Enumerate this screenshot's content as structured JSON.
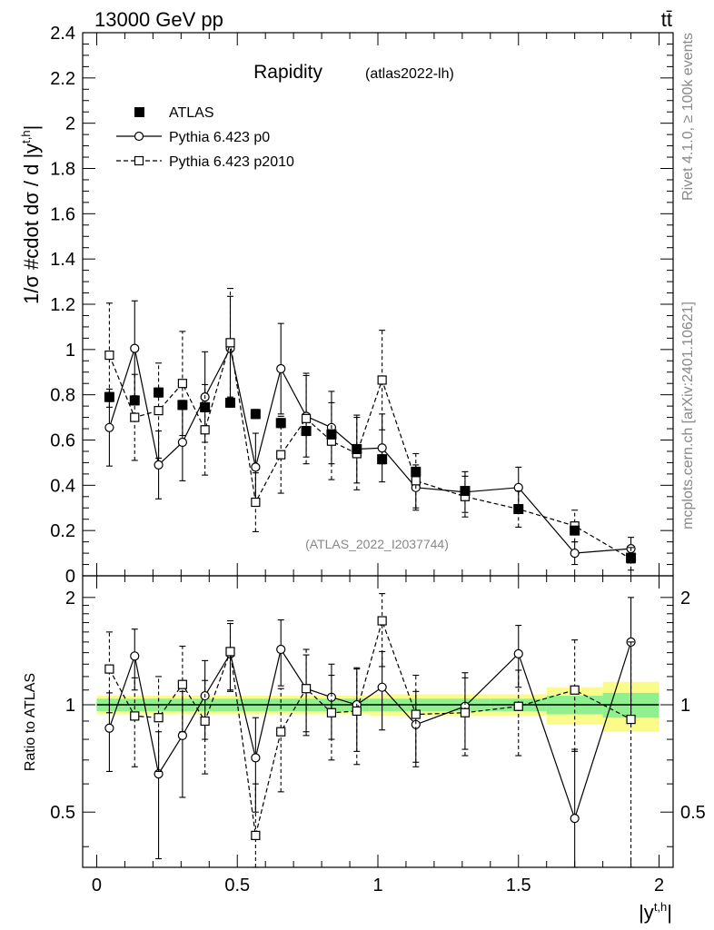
{
  "header": {
    "left_label": "13000 GeV pp",
    "right_label": "tt̄"
  },
  "side_labels": {
    "rivet": "Rivet 4.1.0, ≥ 100k events",
    "mcplots": "mcplots.cern.ch [arXiv:2401.10621]"
  },
  "chart_data": [
    {
      "type": "scatter",
      "panel": "main",
      "title": "Rapidity",
      "subtitle": "(atlas2022-lh)",
      "watermark": "(ATLAS_2022_I2037744)",
      "ylabel": "1/σ #cdot dσ / d |y^{t,h}|",
      "ylabel_main": "1/σ #cdot dσ / d |y",
      "ylabel_sup": "t,h",
      "ylabel_end": "|",
      "xlim": [
        -0.05,
        2.05
      ],
      "ylim": [
        0,
        2.4
      ],
      "yticks": [
        0.2,
        0.4,
        0.6,
        0.8,
        1,
        1.2,
        1.4,
        1.6,
        1.8,
        2,
        2.2,
        2.4
      ],
      "ytick_labels": [
        "0.2",
        "0.4",
        "0.6",
        "0.8",
        "1",
        "1.2",
        "1.4",
        "1.6",
        "1.8",
        "2",
        "2.2",
        "2.4"
      ],
      "ytick_zero_label": "0",
      "legend": [
        "ATLAS",
        "Pythia 6.423 p0",
        "Pythia 6.423 p2010"
      ],
      "series": [
        {
          "name": "ATLAS",
          "marker": "filled-square",
          "x": [
            0.045,
            0.135,
            0.22,
            0.305,
            0.385,
            0.475,
            0.565,
            0.655,
            0.745,
            0.835,
            0.925,
            1.015,
            1.135,
            1.31,
            1.5,
            1.7,
            1.9
          ],
          "y": [
            0.79,
            0.775,
            0.81,
            0.755,
            0.745,
            0.765,
            0.715,
            0.675,
            0.64,
            0.625,
            0.56,
            0.515,
            0.46,
            0.375,
            0.295,
            0.2,
            0.08
          ],
          "err": [
            0.02,
            0.02,
            0.02,
            0.02,
            0.02,
            0.02,
            0.02,
            0.02,
            0.02,
            0.02,
            0.02,
            0.02,
            0.015,
            0.015,
            0.015,
            0.015,
            0.01
          ]
        },
        {
          "name": "Pythia 6.423 p0",
          "marker": "open-circle",
          "linestyle": "solid",
          "x": [
            0.045,
            0.135,
            0.22,
            0.305,
            0.385,
            0.475,
            0.565,
            0.655,
            0.745,
            0.835,
            0.925,
            1.015,
            1.135,
            1.31,
            1.5,
            1.7,
            1.9
          ],
          "y": [
            0.655,
            1.005,
            0.49,
            0.59,
            0.79,
            1.005,
            0.48,
            0.915,
            0.705,
            0.655,
            0.56,
            0.565,
            0.39,
            0.37,
            0.39,
            0.1,
            0.12
          ],
          "err": [
            0.17,
            0.21,
            0.15,
            0.17,
            0.2,
            0.23,
            0.15,
            0.2,
            0.18,
            0.16,
            0.15,
            0.15,
            0.1,
            0.09,
            0.09,
            0.05,
            0.05
          ]
        },
        {
          "name": "Pythia 6.423 p2010",
          "marker": "open-square",
          "linestyle": "dashed",
          "x": [
            0.045,
            0.135,
            0.22,
            0.305,
            0.385,
            0.475,
            0.565,
            0.655,
            0.745,
            0.835,
            0.925,
            1.015,
            1.135,
            1.31,
            1.5,
            1.7,
            1.9
          ],
          "y": [
            0.975,
            0.7,
            0.73,
            0.85,
            0.645,
            1.03,
            0.325,
            0.535,
            0.695,
            0.595,
            0.54,
            0.865,
            0.42,
            0.35,
            0.295,
            0.22,
            0.075
          ],
          "err": [
            0.23,
            0.19,
            0.21,
            0.23,
            0.2,
            0.24,
            0.13,
            0.17,
            0.2,
            0.17,
            0.16,
            0.22,
            0.12,
            0.09,
            0.08,
            0.07,
            0.05
          ]
        }
      ]
    },
    {
      "type": "scatter",
      "panel": "ratio",
      "ylabel": "Ratio to ATLAS",
      "xlabel": "|y^{t,h}|",
      "xlabel_main": "|y",
      "xlabel_sup": "t,h",
      "xlabel_end": "|",
      "xlim": [
        -0.05,
        2.05
      ],
      "ylim": [
        0.35,
        2.3
      ],
      "xticks": [
        0,
        0.5,
        1,
        1.5,
        2
      ],
      "xtick_labels": [
        "0",
        "0.5",
        "1",
        "1.5",
        "2"
      ],
      "yticks": [
        0.5,
        1,
        2
      ],
      "ytick_labels": [
        "0.5",
        "1",
        "2"
      ],
      "bands": {
        "x_edges": [
          0.0,
          0.09,
          0.18,
          0.26,
          0.35,
          0.43,
          0.52,
          0.61,
          0.7,
          0.79,
          0.88,
          0.97,
          1.06,
          1.21,
          1.4,
          1.6,
          1.8,
          2.0
        ],
        "stat": [
          0.04,
          0.04,
          0.04,
          0.04,
          0.04,
          0.04,
          0.04,
          0.04,
          0.04,
          0.04,
          0.04,
          0.04,
          0.04,
          0.04,
          0.04,
          0.06,
          0.08
        ],
        "total": [
          0.06,
          0.06,
          0.06,
          0.06,
          0.06,
          0.06,
          0.06,
          0.06,
          0.06,
          0.06,
          0.06,
          0.07,
          0.07,
          0.07,
          0.07,
          0.12,
          0.16
        ],
        "stat_color": "#8ef08e",
        "total_color": "#fbfb8a"
      },
      "series": [
        {
          "name": "Pythia 6.423 p0",
          "marker": "open-circle",
          "linestyle": "solid",
          "x": [
            0.045,
            0.135,
            0.22,
            0.305,
            0.385,
            0.475,
            0.565,
            0.655,
            0.745,
            0.835,
            0.925,
            1.015,
            1.135,
            1.31,
            1.5,
            1.7,
            1.9
          ],
          "y": [
            0.86,
            1.37,
            0.64,
            0.82,
            1.06,
            1.39,
            0.71,
            1.43,
            1.11,
            1.05,
            1.0,
            1.12,
            0.88,
            0.99,
            1.39,
            0.48,
            1.5
          ],
          "lo": [
            0.65,
            1.1,
            0.37,
            0.55,
            0.8,
            1.09,
            0.5,
            1.13,
            0.84,
            0.8,
            0.74,
            0.85,
            0.67,
            0.75,
            1.12,
            0.3,
            0.9
          ],
          "hi": [
            1.08,
            1.63,
            0.84,
            1.09,
            1.33,
            1.69,
            0.92,
            1.73,
            1.38,
            1.3,
            1.26,
            1.41,
            1.09,
            1.23,
            1.67,
            0.75,
            2.0
          ]
        },
        {
          "name": "Pythia 6.423 p2010",
          "marker": "open-square",
          "linestyle": "dashed",
          "x": [
            0.045,
            0.135,
            0.22,
            0.305,
            0.385,
            0.475,
            0.565,
            0.655,
            0.745,
            0.835,
            0.925,
            1.015,
            1.135,
            1.31,
            1.5,
            1.7,
            1.9
          ],
          "y": [
            1.26,
            0.93,
            0.92,
            1.14,
            0.9,
            1.41,
            0.43,
            0.84,
            1.11,
            0.95,
            0.96,
            1.72,
            0.94,
            0.95,
            0.99,
            1.1,
            0.91
          ],
          "lo": [
            0.95,
            0.67,
            0.65,
            0.84,
            0.64,
            1.1,
            0.35,
            0.57,
            0.82,
            0.7,
            0.68,
            1.28,
            0.69,
            0.72,
            0.72,
            0.74,
            0.3
          ],
          "hi": [
            1.6,
            1.19,
            1.2,
            1.46,
            1.17,
            1.72,
            0.6,
            1.11,
            1.43,
            1.21,
            1.27,
            2.05,
            1.21,
            1.19,
            1.25,
            1.52,
            1.5
          ]
        }
      ]
    }
  ]
}
